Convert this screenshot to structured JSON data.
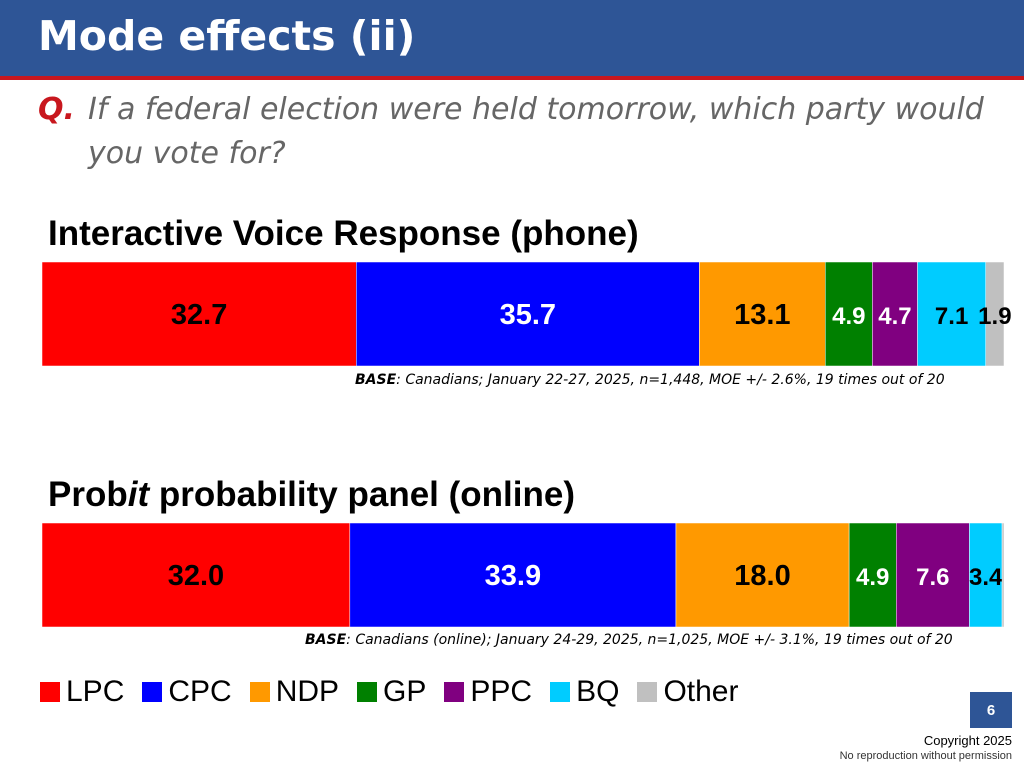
{
  "header": {
    "title": "Mode effects (ii)"
  },
  "question": {
    "label": "Q.",
    "text": "If a federal election were held tomorrow, which party would you vote for?"
  },
  "legend": [
    {
      "label": "LPC",
      "color": "#ff0000"
    },
    {
      "label": "CPC",
      "color": "#0000ff"
    },
    {
      "label": "NDP",
      "color": "#ff9900"
    },
    {
      "label": "GP",
      "color": "#008000"
    },
    {
      "label": "PPC",
      "color": "#800080"
    },
    {
      "label": "BQ",
      "color": "#00ccff"
    },
    {
      "label": "Other",
      "color": "#c0c0c0"
    }
  ],
  "chart_data": [
    {
      "type": "bar",
      "orientation": "horizontal-stacked",
      "title_parts": [
        "Interactive Voice Response (phone)",
        "",
        ""
      ],
      "categories": [
        "LPC",
        "CPC",
        "NDP",
        "GP",
        "PPC",
        "BQ",
        "Other"
      ],
      "values": [
        32.7,
        35.7,
        13.1,
        4.9,
        4.7,
        7.1,
        1.9
      ],
      "labels": [
        "32.7",
        "35.7",
        "13.1",
        "4.9",
        "4.7",
        "7.1",
        "1.9"
      ],
      "base_label": "BASE",
      "base_text": ": Canadians; January 22-27, 2025, n=1,448, MOE +/- 2.6%, 19 times out of 20"
    },
    {
      "type": "bar",
      "orientation": "horizontal-stacked",
      "title_parts": [
        "Prob",
        "it",
        " probability panel (online)"
      ],
      "categories": [
        "LPC",
        "CPC",
        "NDP",
        "GP",
        "PPC",
        "BQ",
        "Other"
      ],
      "values": [
        32.0,
        33.9,
        18.0,
        4.9,
        7.6,
        3.4,
        0.2
      ],
      "labels": [
        "32.0",
        "33.9",
        "18.0",
        "4.9",
        "7.6",
        "3.4",
        ""
      ],
      "base_label": "BASE",
      "base_text": ": Canadians (online); January 24-29, 2025, n=1,025, MOE +/- 3.1%, 19 times out of 20"
    }
  ],
  "footer": {
    "page_number": "6",
    "copyright": "Copyright 2025",
    "no_reproduction": "No reproduction without permission"
  }
}
